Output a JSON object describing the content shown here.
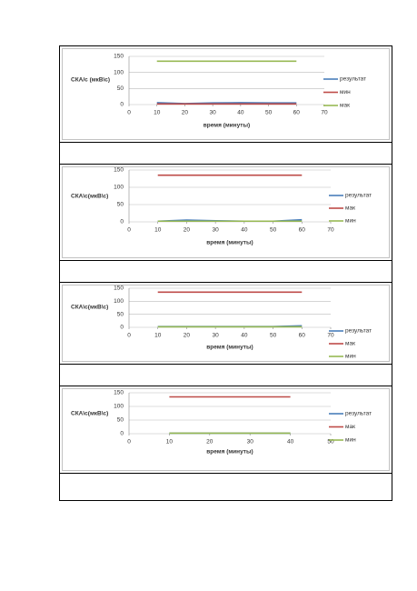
{
  "chart_data": [
    {
      "type": "line",
      "y_label": "СКА/с (мкВ\\с)",
      "x_label": "время (минуты)",
      "x": [
        10,
        20,
        30,
        40,
        50,
        60
      ],
      "xlim": [
        0,
        70
      ],
      "xticks": [
        0,
        10,
        20,
        30,
        40,
        50,
        60,
        70
      ],
      "ylim": [
        0,
        150
      ],
      "yticks": [
        0,
        50,
        100,
        150
      ],
      "grid": true,
      "series": [
        {
          "name": "результат",
          "color": "#4a7ebb",
          "values": [
            6,
            3,
            5,
            6,
            5,
            5
          ]
        },
        {
          "name": "мин",
          "color": "#be4b48",
          "values": [
            2,
            2,
            2,
            2,
            2,
            2
          ]
        },
        {
          "name": "мак",
          "color": "#98b954",
          "values": [
            135,
            135,
            135,
            135,
            135,
            135
          ]
        }
      ]
    },
    {
      "type": "line",
      "y_label": "СКА\\с(мкВ\\с)",
      "x_label": "время (минуты)",
      "x": [
        10,
        20,
        30,
        40,
        50,
        60
      ],
      "xlim": [
        0,
        70
      ],
      "xticks": [
        0,
        10,
        20,
        30,
        40,
        50,
        60,
        70
      ],
      "ylim": [
        0,
        150
      ],
      "yticks": [
        0,
        50,
        100,
        150
      ],
      "grid": true,
      "series": [
        {
          "name": "результат",
          "color": "#4a7ebb",
          "values": [
            2,
            5,
            3,
            2,
            2,
            6
          ]
        },
        {
          "name": "мак",
          "color": "#be4b48",
          "values": [
            135,
            135,
            135,
            135,
            135,
            135
          ]
        },
        {
          "name": "мин",
          "color": "#98b954",
          "values": [
            2,
            2,
            2,
            2,
            2,
            2
          ]
        }
      ]
    },
    {
      "type": "line",
      "y_label": "СКА\\с(мкВ\\с)",
      "x_label": "время (минуты)",
      "x": [
        10,
        20,
        30,
        40,
        50,
        60
      ],
      "xlim": [
        0,
        70
      ],
      "xticks": [
        0,
        10,
        20,
        30,
        40,
        50,
        60,
        70
      ],
      "ylim": [
        0,
        150
      ],
      "yticks": [
        0,
        50,
        100,
        150
      ],
      "grid": true,
      "series": [
        {
          "name": "результат",
          "color": "#4a7ebb",
          "values": [
            3,
            3,
            3,
            3,
            3,
            6
          ]
        },
        {
          "name": "мак",
          "color": "#be4b48",
          "values": [
            135,
            135,
            135,
            135,
            135,
            135
          ]
        },
        {
          "name": "мин",
          "color": "#98b954",
          "values": [
            2,
            2,
            2,
            2,
            2,
            2
          ]
        }
      ]
    },
    {
      "type": "line",
      "y_label": "СКА\\с(мкВ\\с)",
      "x_label": "время (минуты)",
      "x": [
        10,
        20,
        30,
        40
      ],
      "xlim": [
        0,
        50
      ],
      "xticks": [
        0,
        10,
        20,
        30,
        40,
        50
      ],
      "ylim": [
        0,
        150
      ],
      "yticks": [
        0,
        50,
        100,
        150
      ],
      "grid": true,
      "series": [
        {
          "name": "результат",
          "color": "#4a7ebb",
          "values": [
            2,
            2,
            2,
            2
          ]
        },
        {
          "name": "мак",
          "color": "#be4b48",
          "values": [
            135,
            135,
            135,
            135
          ]
        },
        {
          "name": "мин",
          "color": "#98b954",
          "values": [
            2,
            2,
            2,
            2
          ]
        }
      ]
    }
  ]
}
